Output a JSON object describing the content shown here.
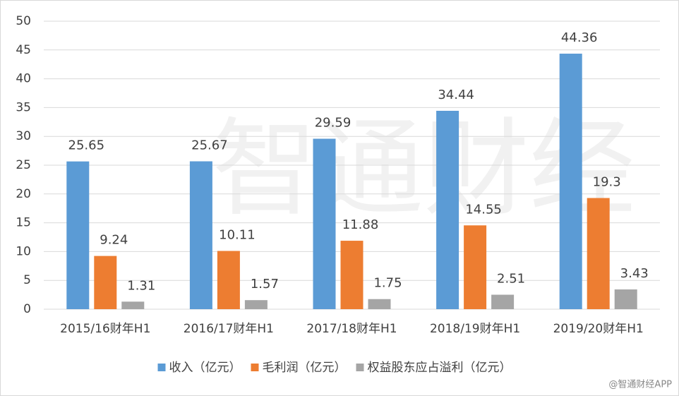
{
  "chart_data": {
    "type": "bar",
    "categories": [
      "2015/16财年H1",
      "2016/17财年H1",
      "2017/18财年H1",
      "2018/19财年H1",
      "2019/20财年H1"
    ],
    "series": [
      {
        "name": "收入（亿元）",
        "color": "#5b9bd5",
        "values": [
          25.65,
          25.67,
          29.59,
          34.44,
          44.36
        ]
      },
      {
        "name": "毛利润（亿元）",
        "color": "#ed7d31",
        "values": [
          9.24,
          10.11,
          11.88,
          14.55,
          19.3
        ]
      },
      {
        "name": "权益股东应占溢利（亿元）",
        "color": "#a5a5a5",
        "values": [
          1.31,
          1.57,
          1.75,
          2.51,
          3.43
        ]
      }
    ],
    "ylim": [
      0,
      50
    ],
    "yticks": [
      0,
      5,
      10,
      15,
      20,
      25,
      30,
      35,
      40,
      45,
      50
    ],
    "grid": true,
    "legend": "bottom",
    "watermark": "智通财经",
    "source": "@智通财经APP"
  }
}
